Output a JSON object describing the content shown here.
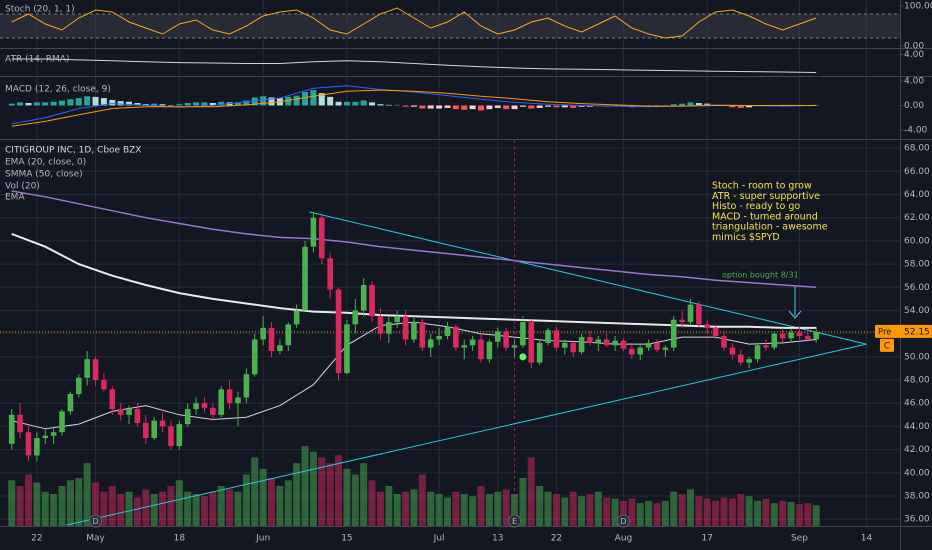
{
  "chart_data": {
    "type": "candlestick",
    "title": "CITIGROUP INC, 1D, Cboe BZX",
    "up_color": "#4caf50",
    "down_color": "#d9295f",
    "xlim": [
      -1.4,
      106
    ],
    "xticks": [
      {
        "value": 3,
        "label": "22"
      },
      {
        "value": 10,
        "label": "May"
      },
      {
        "value": 20,
        "label": "18"
      },
      {
        "value": 30,
        "label": "Jun"
      },
      {
        "value": 40,
        "label": "15"
      },
      {
        "value": 51,
        "label": "Jul"
      },
      {
        "value": 58,
        "label": "13"
      },
      {
        "value": 65,
        "label": "22"
      },
      {
        "value": 73,
        "label": "Aug"
      },
      {
        "value": 83,
        "label": "17"
      },
      {
        "value": 94,
        "label": "Sep"
      },
      {
        "value": 102,
        "label": "14"
      }
    ],
    "ylim": [
      35.5,
      68.7
    ],
    "yticks": [
      {
        "value": 36,
        "label": "36.00"
      },
      {
        "value": 38,
        "label": "38.00"
      },
      {
        "value": 40,
        "label": "40.00"
      },
      {
        "value": 42,
        "label": "42.00"
      },
      {
        "value": 44,
        "label": "44.00"
      },
      {
        "value": 46,
        "label": "46.00"
      },
      {
        "value": 48,
        "label": "48.00"
      },
      {
        "value": 50,
        "label": "50.00"
      },
      {
        "value": 52,
        "label": "52.00"
      },
      {
        "value": 54,
        "label": "54.00"
      },
      {
        "value": 56,
        "label": "56.00"
      },
      {
        "value": 58,
        "label": "58.00"
      },
      {
        "value": 60,
        "label": "60.00"
      },
      {
        "value": 62,
        "label": "62.00"
      },
      {
        "value": 64,
        "label": "64.00"
      },
      {
        "value": 66,
        "label": "66.00"
      },
      {
        "value": 68,
        "label": "68.00"
      }
    ],
    "candles": [
      [
        42.5,
        45.5,
        42,
        45
      ],
      [
        45,
        46,
        43,
        43.5
      ],
      [
        43.5,
        44,
        41,
        41.5
      ],
      [
        41.5,
        43.5,
        41,
        43
      ],
      [
        43,
        43.8,
        42.5,
        43.2
      ],
      [
        43.2,
        44,
        42.5,
        43.5
      ],
      [
        43.5,
        45.5,
        43.2,
        45.3
      ],
      [
        45.3,
        47,
        45,
        46.8
      ],
      [
        46.8,
        48.5,
        46.5,
        48.2
      ],
      [
        48.2,
        50.5,
        47.5,
        49.8
      ],
      [
        49.8,
        50,
        47.5,
        48
      ],
      [
        48,
        48.6,
        47,
        47.2
      ],
      [
        47.2,
        47.5,
        45,
        45.5
      ],
      [
        45.5,
        46,
        44.5,
        45
      ],
      [
        45,
        45.8,
        44.2,
        45.5
      ],
      [
        45.5,
        46,
        44,
        44.3
      ],
      [
        44.3,
        45,
        42.5,
        43
      ],
      [
        43,
        44.8,
        42.8,
        44.5
      ],
      [
        44.5,
        45.2,
        43.5,
        44
      ],
      [
        44,
        44.5,
        42,
        42.3
      ],
      [
        42.3,
        44.5,
        42,
        44.2
      ],
      [
        44.2,
        46,
        44,
        45.5
      ],
      [
        45.5,
        46.5,
        45,
        46
      ],
      [
        46,
        46.5,
        45.2,
        45.6
      ],
      [
        45.6,
        46,
        44.5,
        45
      ],
      [
        45,
        47.5,
        44.8,
        47.2
      ],
      [
        47.2,
        48,
        45.5,
        46
      ],
      [
        46,
        47,
        44,
        46.5
      ],
      [
        46.5,
        49,
        46,
        48.5
      ],
      [
        48.5,
        52,
        48.3,
        51.5
      ],
      [
        51.5,
        53.5,
        51,
        52.5
      ],
      [
        52.5,
        53,
        50,
        50.5
      ],
      [
        50.5,
        51.5,
        50.2,
        51
      ],
      [
        51,
        53,
        50.5,
        52.8
      ],
      [
        52.8,
        54.5,
        52.5,
        54
      ],
      [
        54,
        60,
        54,
        59.5
      ],
      [
        59.5,
        62.5,
        59,
        62
      ],
      [
        62,
        62.2,
        58,
        58.5
      ],
      [
        58.5,
        59,
        55,
        55.8
      ],
      [
        55.8,
        56,
        48,
        48.6
      ],
      [
        48.6,
        53.2,
        48.5,
        52.8
      ],
      [
        52.8,
        55,
        52,
        54
      ],
      [
        54,
        56.8,
        53.5,
        56.2
      ],
      [
        56.2,
        56.5,
        53,
        53.5
      ],
      [
        53.5,
        54.2,
        51.5,
        52
      ],
      [
        52,
        53.5,
        51.2,
        53
      ],
      [
        53,
        54,
        52.5,
        53.5
      ],
      [
        53.5,
        54,
        51,
        51.5
      ],
      [
        51.5,
        53.5,
        51.2,
        53
      ],
      [
        53,
        53.3,
        50.5,
        50.8
      ],
      [
        50.8,
        52,
        50,
        51.5
      ],
      [
        51.5,
        52.5,
        51,
        51.8
      ],
      [
        51.8,
        53,
        51.5,
        52.6
      ],
      [
        52.6,
        52.8,
        50.5,
        50.8
      ],
      [
        50.8,
        51.5,
        49.8,
        51
      ],
      [
        51,
        51.8,
        50.5,
        51.5
      ],
      [
        51.5,
        52,
        49.5,
        49.8
      ],
      [
        49.8,
        51.5,
        49.5,
        51.3
      ],
      [
        51.3,
        52.5,
        50.8,
        52.2
      ],
      [
        52.2,
        52.5,
        50.5,
        50.8
      ],
      [
        50.8,
        51.5,
        50,
        51
      ],
      [
        51,
        53.5,
        50.8,
        53
      ],
      [
        53,
        53.2,
        49,
        49.5
      ],
      [
        49.5,
        51.5,
        49.3,
        51.2
      ],
      [
        51.2,
        52.5,
        51,
        52.3
      ],
      [
        52.3,
        52.6,
        50.5,
        50.8
      ],
      [
        50.8,
        51.5,
        50.2,
        51.2
      ],
      [
        51.2,
        51.3,
        50,
        50.4
      ],
      [
        50.4,
        52,
        50.2,
        51.7
      ],
      [
        51.7,
        52.2,
        51,
        51.2
      ],
      [
        51.2,
        51.8,
        50.5,
        51.5
      ],
      [
        51.5,
        52,
        50.8,
        51
      ],
      [
        51,
        51.8,
        50.5,
        51.4
      ],
      [
        51.4,
        51.6,
        50.5,
        50.7
      ],
      [
        50.7,
        51.2,
        49.8,
        50.2
      ],
      [
        50.2,
        51,
        49.7,
        50.8
      ],
      [
        50.8,
        51.5,
        50.5,
        51.2
      ],
      [
        51.2,
        51.5,
        50.4,
        50.6
      ],
      [
        50.6,
        51,
        50,
        50.8
      ],
      [
        50.8,
        53.5,
        50.5,
        53.2
      ],
      [
        53.2,
        54,
        52.5,
        53
      ],
      [
        53,
        55,
        52.8,
        54.5
      ],
      [
        54.5,
        54.8,
        52.5,
        52.8
      ],
      [
        52.8,
        53.2,
        52,
        52.5
      ],
      [
        52.5,
        52.8,
        51.5,
        51.8
      ],
      [
        51.8,
        52.2,
        50.5,
        50.8
      ],
      [
        50.8,
        51.2,
        49.8,
        50.2
      ],
      [
        50.2,
        50.6,
        49.2,
        49.5
      ],
      [
        49.5,
        50,
        49,
        49.8
      ],
      [
        49.8,
        51.2,
        49.5,
        51
      ],
      [
        51,
        51.5,
        50.5,
        50.8
      ],
      [
        50.8,
        52.2,
        50.6,
        52
      ],
      [
        52,
        52.5,
        51.3,
        51.6
      ],
      [
        51.6,
        52.4,
        51.2,
        52.1
      ],
      [
        52.1,
        52.6,
        51.5,
        51.8
      ],
      [
        51.8,
        52.4,
        51.3,
        51.5
      ],
      [
        51.5,
        52.6,
        51.2,
        52.15
      ]
    ],
    "volume_label": "Vol (20)",
    "volume": [
      40,
      35,
      45,
      38,
      30,
      28,
      35,
      40,
      42,
      55,
      38,
      30,
      35,
      28,
      30,
      25,
      32,
      28,
      30,
      35,
      40,
      30,
      28,
      26,
      30,
      35,
      32,
      30,
      45,
      60,
      50,
      42,
      35,
      40,
      55,
      70,
      65,
      60,
      55,
      62,
      50,
      45,
      55,
      40,
      30,
      35,
      28,
      30,
      32,
      45,
      30,
      28,
      25,
      30,
      28,
      26,
      35,
      28,
      30,
      32,
      28,
      42,
      60,
      35,
      30,
      28,
      25,
      30,
      26,
      28,
      30,
      25,
      24,
      22,
      24,
      20,
      22,
      20,
      22,
      30,
      28,
      32,
      26,
      24,
      22,
      25,
      24,
      28,
      26,
      22,
      24,
      20,
      22,
      21,
      19,
      20,
      18
    ],
    "line_x": [
      0,
      4,
      8,
      12,
      16,
      20,
      24,
      28,
      32,
      36,
      40,
      44,
      48,
      52,
      56,
      60,
      64,
      68,
      72,
      76,
      80,
      84,
      88,
      92,
      96
    ],
    "lines": [
      {
        "label": "EMA (20, close, 0)",
        "color": "#d1d4dc",
        "width": 1,
        "values": [
          44.5,
          43.8,
          44.2,
          45.3,
          45.8,
          45.0,
          44.6,
          44.8,
          45.8,
          47.6,
          51.0,
          52.7,
          53.0,
          52.6,
          52.0,
          51.7,
          51.4,
          51.3,
          51.1,
          51.1,
          51.7,
          51.7,
          51.1,
          51.2,
          51.5
        ]
      },
      {
        "label": "SMMA (50, close)",
        "color": "#e8e8e8",
        "width": 2,
        "values": [
          60.6,
          59.5,
          58.0,
          57.0,
          56.2,
          55.5,
          55.0,
          54.6,
          54.2,
          53.9,
          53.8,
          53.6,
          53.5,
          53.4,
          53.3,
          53.2,
          53.1,
          53.0,
          52.9,
          52.8,
          52.7,
          52.6,
          52.6,
          52.5,
          52.5
        ]
      },
      {
        "label": "EMA",
        "color": "#9575cd",
        "width": 1.5,
        "values": [
          64.3,
          63.8,
          63.2,
          62.6,
          62.0,
          61.5,
          61.0,
          60.6,
          60.3,
          60.2,
          59.9,
          59.5,
          59.2,
          58.9,
          58.6,
          58.3,
          58.0,
          57.7,
          57.4,
          57.1,
          56.9,
          56.6,
          56.4,
          56.2,
          56.0
        ]
      }
    ],
    "trendlines": [
      {
        "color": "#26c6da",
        "x": [
          35.5,
          102
        ],
        "y": [
          62.5,
          51.1
        ]
      },
      {
        "color": "#26c6da",
        "x": [
          -1.4,
          102
        ],
        "y": [
          34.2,
          51.1
        ]
      }
    ],
    "events": [
      {
        "label": "D",
        "x": 10
      },
      {
        "label": "E",
        "x": 60
      },
      {
        "label": "D",
        "x": 73
      }
    ],
    "marker": {
      "x": 61,
      "y": 50,
      "color": "#69f06e"
    },
    "price_tag": {
      "prefix": "Pre",
      "close_flag": "C"
    },
    "annotations": [
      {
        "color": "#f4e04d",
        "lines": [
          "Stoch - room to grow",
          "ATR - super supportive",
          "Histo - ready to go",
          "MACD - turned around",
          "triangulation - awesome",
          "mimics $SPYD"
        ]
      },
      {
        "color": "#4caf50",
        "lines": [
          "option bought 8/31"
        ]
      }
    ],
    "stoch": {
      "label": "Stoch (20, 1, 1)",
      "color": "#f5a623",
      "band": [
        20,
        80
      ],
      "ylim": [
        0,
        100
      ],
      "yticks": [
        {
          "value": 100,
          "label": "100.00"
        },
        {
          "value": 0,
          "label": "0.00"
        }
      ],
      "x": [
        0,
        2,
        4,
        6,
        8,
        10,
        12,
        14,
        16,
        18,
        20,
        22,
        24,
        26,
        28,
        30,
        32,
        34,
        36,
        38,
        40,
        42,
        44,
        46,
        48,
        50,
        52,
        54,
        56,
        58,
        60,
        62,
        64,
        66,
        68,
        70,
        72,
        74,
        76,
        78,
        80,
        82,
        84,
        86,
        88,
        90,
        92,
        94,
        96
      ],
      "values": [
        60,
        80,
        55,
        40,
        70,
        90,
        85,
        60,
        45,
        30,
        55,
        65,
        40,
        30,
        50,
        75,
        85,
        90,
        70,
        40,
        30,
        55,
        80,
        95,
        70,
        45,
        60,
        85,
        50,
        30,
        40,
        60,
        70,
        50,
        35,
        55,
        75,
        45,
        30,
        20,
        25,
        60,
        85,
        90,
        75,
        55,
        40,
        55,
        70
      ]
    },
    "atr": {
      "label": "ATR (14, RMA)",
      "color": "#d1d4dc",
      "ylim": [
        1.5,
        4.5
      ],
      "yticks": [
        {
          "value": 4,
          "label": "4.00"
        }
      ],
      "values": [
        3.5,
        3.5,
        3.4,
        3.3,
        3.2,
        3.1,
        3.05,
        3.0,
        3.0,
        3.2,
        3.3,
        3.2,
        3.0,
        2.8,
        2.65,
        2.5,
        2.4,
        2.35,
        2.3,
        2.25,
        2.2,
        2.15,
        2.1,
        2.05,
        2.0
      ]
    },
    "macd": {
      "label": "MACD (12, 26, close, 9)",
      "ylim": [
        -5.3,
        4.8
      ],
      "yticks": [
        {
          "value": 4,
          "label": "4.00"
        },
        {
          "value": 0,
          "label": "0.00"
        },
        {
          "value": -4,
          "label": "-4.00"
        }
      ],
      "hist_colors": [
        "#26a69a",
        "#b2dfdb",
        "#ff5252",
        "#ffcdd2"
      ],
      "macd_color": "#2962ff",
      "signal_color": "#ff9800",
      "histogram": [
        0.3,
        0.5,
        0.4,
        0.5,
        0.5,
        0.6,
        0.8,
        1.0,
        1.2,
        1.5,
        1.4,
        1.2,
        0.9,
        0.7,
        0.6,
        0.4,
        0.2,
        0.3,
        0.2,
        0,
        0.2,
        0.4,
        0.5,
        0.5,
        0.4,
        0.6,
        0.5,
        0.5,
        0.8,
        1.3,
        1.5,
        1.3,
        1.2,
        1.4,
        1.6,
        2.2,
        2.5,
        2.0,
        1.4,
        0.6,
        0.6,
        0.6,
        0.8,
        0.5,
        0.2,
        0.1,
        0.1,
        -0.2,
        -0.2,
        -0.5,
        -0.5,
        -0.5,
        -0.4,
        -0.6,
        -0.7,
        -0.6,
        -0.8,
        -0.6,
        -0.4,
        -0.6,
        -0.6,
        -0.2,
        -0.5,
        -0.4,
        -0.2,
        -0.3,
        -0.3,
        -0.4,
        -0.2,
        -0.2,
        -0.1,
        -0.2,
        -0.1,
        -0.2,
        -0.3,
        -0.2,
        -0.1,
        -0.1,
        -0.1,
        0.2,
        0.3,
        0.5,
        0.4,
        0.3,
        0.1,
        -0.1,
        -0.3,
        -0.4,
        -0.3,
        -0.1,
        -0.1,
        0,
        0.1,
        0.1,
        0.1,
        0,
        0.1
      ],
      "macd_line": [
        -3.0,
        -2.0,
        -0.5,
        0.3,
        0.0,
        -0.3,
        0.0,
        0.6,
        1.2,
        2.8,
        3.2,
        2.6,
        2.2,
        1.6,
        1.0,
        0.5,
        0.2,
        0.0,
        -0.1,
        -0.2,
        -0.1,
        0.1,
        0.0,
        -0.1,
        0.0
      ],
      "signal_line": [
        -3.4,
        -2.6,
        -1.5,
        -0.5,
        -0.2,
        -0.2,
        -0.2,
        0.1,
        0.6,
        1.5,
        2.3,
        2.5,
        2.3,
        2.0,
        1.5,
        1.1,
        0.6,
        0.3,
        0.1,
        -0.1,
        -0.1,
        0.0,
        0.0,
        0.0,
        0.0
      ]
    }
  }
}
